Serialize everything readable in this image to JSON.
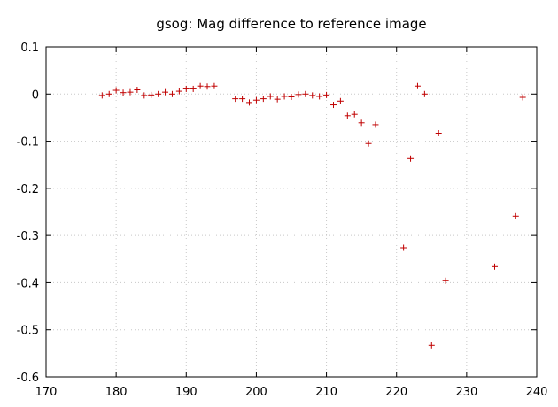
{
  "chart_data": {
    "type": "scatter",
    "title": "gsog: Mag difference to reference image",
    "xlabel": "",
    "ylabel": "",
    "xlim": [
      170,
      240
    ],
    "ylim": [
      -0.6,
      0.1
    ],
    "xticks": [
      "170",
      "180",
      "190",
      "200",
      "210",
      "220",
      "230",
      "240"
    ],
    "xtick_values": [
      170,
      180,
      190,
      200,
      210,
      220,
      230,
      240
    ],
    "yticks": [
      "0.1",
      "0",
      "-0.1",
      "-0.2",
      "-0.3",
      "-0.4",
      "-0.5",
      "-0.6"
    ],
    "ytick_values": [
      0.1,
      0,
      -0.1,
      -0.2,
      -0.3,
      -0.4,
      -0.5,
      -0.6
    ],
    "grid": true,
    "marker": "plus",
    "color": "#c00000",
    "points": [
      [
        178,
        -0.003
      ],
      [
        179,
        0.0
      ],
      [
        180,
        0.008
      ],
      [
        181,
        0.003
      ],
      [
        182,
        0.004
      ],
      [
        183,
        0.009
      ],
      [
        184,
        -0.003
      ],
      [
        185,
        -0.002
      ],
      [
        186,
        0.0
      ],
      [
        187,
        0.004
      ],
      [
        188,
        0.0
      ],
      [
        189,
        0.006
      ],
      [
        190,
        0.011
      ],
      [
        191,
        0.011
      ],
      [
        192,
        0.017
      ],
      [
        193,
        0.016
      ],
      [
        194,
        0.017
      ],
      [
        197,
        -0.01
      ],
      [
        198,
        -0.01
      ],
      [
        199,
        -0.018
      ],
      [
        200,
        -0.013
      ],
      [
        201,
        -0.01
      ],
      [
        202,
        -0.005
      ],
      [
        203,
        -0.011
      ],
      [
        204,
        -0.005
      ],
      [
        205,
        -0.006
      ],
      [
        206,
        -0.001
      ],
      [
        207,
        0.0
      ],
      [
        208,
        -0.003
      ],
      [
        209,
        -0.005
      ],
      [
        210,
        -0.002
      ],
      [
        211,
        -0.023
      ],
      [
        212,
        -0.015
      ],
      [
        213,
        -0.046
      ],
      [
        214,
        -0.043
      ],
      [
        215,
        -0.061
      ],
      [
        216,
        -0.105
      ],
      [
        217,
        -0.065
      ],
      [
        221,
        -0.326
      ],
      [
        222,
        -0.137
      ],
      [
        223,
        0.017
      ],
      [
        224,
        0.0
      ],
      [
        225,
        -0.533
      ],
      [
        226,
        -0.083
      ],
      [
        227,
        -0.396
      ],
      [
        234,
        -0.366
      ],
      [
        237,
        -0.259
      ],
      [
        238,
        -0.007
      ]
    ]
  }
}
